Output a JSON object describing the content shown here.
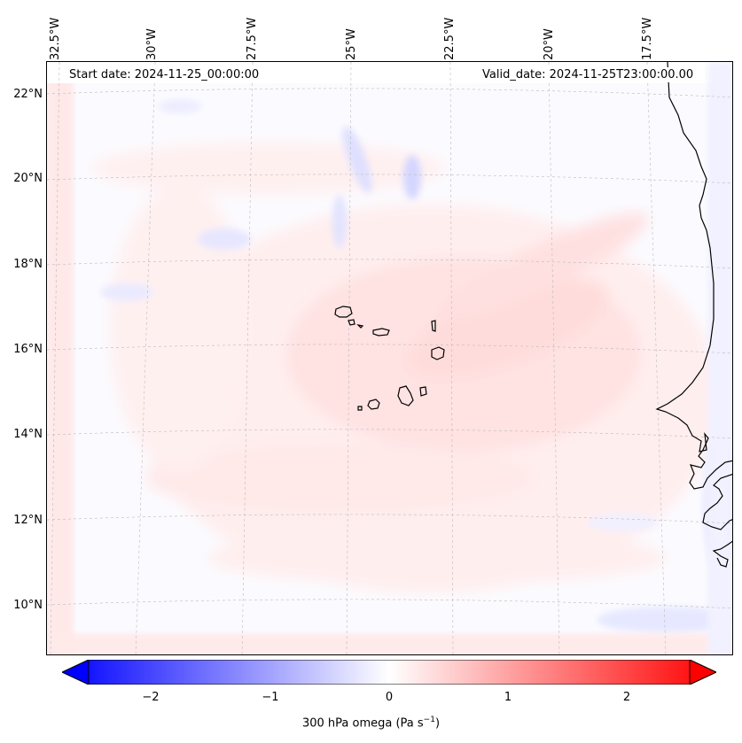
{
  "map": {
    "start_date": "Start date: 2024-11-25_00:00:00",
    "valid_date": "Valid_date: 2024-11-25T23:00:00.00",
    "longitude_labels": [
      "32.5°W",
      "30°W",
      "27.5°W",
      "25°W",
      "22.5°W",
      "20°W",
      "17.5°W"
    ],
    "latitude_labels": [
      "22°N",
      "20°N",
      "18°N",
      "16°N",
      "14°N",
      "12°N",
      "10°N"
    ],
    "region": "Cape Verde islands and West African coast",
    "variable": "300 hPa omega"
  },
  "colorbar": {
    "ticks": [
      "−2",
      "−1",
      "0",
      "1",
      "2"
    ],
    "label_prefix": "300 hPa omega (Pa s",
    "label_exp": "−1",
    "label_suffix": ")",
    "range": [
      -2.6,
      2.6
    ],
    "colors": {
      "negative": "#0000ff",
      "neutral": "#ffffff",
      "positive": "#ff0000"
    }
  }
}
